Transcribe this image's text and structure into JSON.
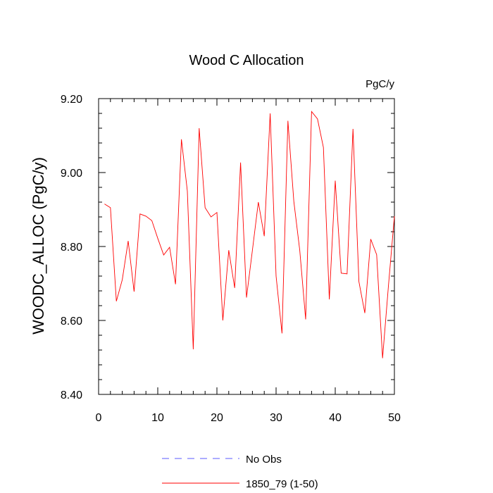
{
  "chart_data": {
    "type": "line",
    "title": "Wood C Allocation",
    "units": "PgC/y",
    "xlabel": "",
    "ylabel": "WOODC_ALLOC  (PgC/y)",
    "xlim": [
      0,
      50
    ],
    "ylim": [
      8.4,
      9.2
    ],
    "x_ticks": [
      0,
      10,
      20,
      30,
      40,
      50
    ],
    "x_tick_labels": [
      "0",
      "10",
      "20",
      "30",
      "40",
      "50"
    ],
    "y_ticks": [
      8.4,
      8.6,
      8.8,
      9.0,
      9.2
    ],
    "y_tick_labels": [
      "8.40",
      "8.60",
      "8.80",
      "9.00",
      "9.20"
    ],
    "grid": false,
    "legend_position": "bottom",
    "legend": [
      {
        "label": "No Obs",
        "color": "#5a5aff",
        "dash": "dashed"
      },
      {
        "label": "1850_79 (1-50)",
        "color": "#ff0000",
        "dash": "solid"
      }
    ],
    "series": [
      {
        "name": "1850_79 (1-50)",
        "color": "#ff0000",
        "x": [
          1,
          2,
          3,
          4,
          5,
          6,
          7,
          8,
          9,
          10,
          11,
          12,
          13,
          14,
          15,
          16,
          17,
          18,
          19,
          20,
          21,
          22,
          23,
          24,
          25,
          26,
          27,
          28,
          29,
          30,
          31,
          32,
          33,
          34,
          35,
          36,
          37,
          38,
          39,
          40,
          41,
          42,
          43,
          44,
          45,
          46,
          47,
          48,
          49,
          50
        ],
        "y": [
          8.915,
          8.905,
          8.652,
          8.71,
          8.815,
          8.678,
          8.888,
          8.882,
          8.87,
          8.822,
          8.777,
          8.798,
          8.698,
          9.09,
          8.95,
          8.522,
          9.12,
          8.905,
          8.88,
          8.892,
          8.6,
          8.79,
          8.688,
          9.027,
          8.662,
          8.79,
          8.92,
          8.828,
          9.16,
          8.72,
          8.565,
          9.14,
          8.922,
          8.79,
          8.603,
          9.165,
          9.145,
          9.068,
          8.657,
          8.978,
          8.728,
          8.726,
          9.118,
          8.705,
          8.62,
          8.82,
          8.778,
          8.498,
          8.695,
          8.882
        ]
      }
    ]
  }
}
